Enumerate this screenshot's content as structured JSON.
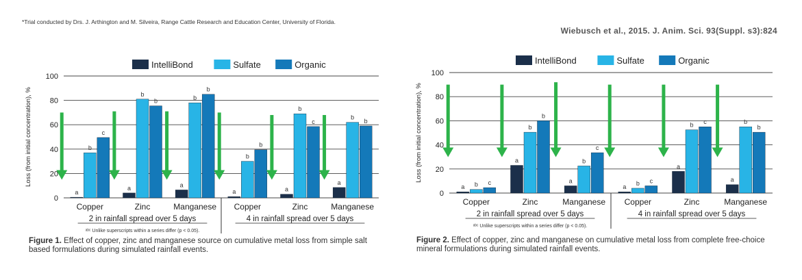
{
  "header": {
    "trial_footnote": "*Trial conducted by Drs. J. Arthington and M. Silveira, Range Cattle Research and Education Center, University of Florida.",
    "citation": "Wiebusch et al., 2015. J. Anim. Sci. 93(Suppl. s3):824"
  },
  "colors": {
    "IntelliBond": "#1b2f4a",
    "Sulfate": "#28b4e6",
    "Organic": "#1479b9",
    "arrow": "#2db34a"
  },
  "chart_data": [
    {
      "type": "bar",
      "ylabel": "Loss (from initial concentration), %",
      "ylim": [
        0,
        100
      ],
      "yticks": [
        0,
        20,
        40,
        60,
        80,
        100
      ],
      "grid": true,
      "legend_position": "top",
      "groups": [
        "2 in rainfall spread over 5 days",
        "4 in rainfall spread over 5 days"
      ],
      "categories": [
        "Copper",
        "Zinc",
        "Manganese",
        "Copper",
        "Zinc",
        "Manganese"
      ],
      "series": [
        {
          "name": "IntelliBond",
          "values": [
            0.5,
            4,
            6.5,
            1,
            3,
            8.5
          ],
          "labels": [
            "a",
            "a",
            "a",
            "a",
            "a",
            "a"
          ]
        },
        {
          "name": "Sulfate",
          "values": [
            37,
            81,
            78,
            30,
            69,
            62
          ],
          "labels": [
            "b",
            "b",
            "b",
            "b",
            "b",
            "b"
          ]
        },
        {
          "name": "Organic",
          "values": [
            49.5,
            75.5,
            85,
            39.5,
            58.5,
            59
          ],
          "labels": [
            "c",
            "b",
            "b",
            "b",
            "c",
            "b"
          ]
        }
      ],
      "arrows": [
        {
          "category_index": 0,
          "from": 70,
          "to": 16
        },
        {
          "category_index": 1,
          "from": 71,
          "to": 16
        },
        {
          "category_index": 2,
          "from": 71,
          "to": 16
        },
        {
          "category_index": 3,
          "from": 70,
          "to": 16
        },
        {
          "category_index": 4,
          "from": 68,
          "to": 16
        },
        {
          "category_index": 5,
          "from": 68,
          "to": 16
        }
      ],
      "superscript_note": "ᵃᵇᶜ Unlike superscripts within a series differ (p < 0.05).",
      "caption_label": "Figure 1.",
      "caption_text": "Effect of copper, zinc and manganese source on cumulative metal loss from simple salt based formulations during simulated rainfall events."
    },
    {
      "type": "bar",
      "ylabel": "Loss (from initial concentration), %",
      "ylim": [
        0,
        100
      ],
      "yticks": [
        0,
        20,
        40,
        60,
        80,
        100
      ],
      "grid": true,
      "legend_position": "top",
      "groups": [
        "2 in rainfall spread over 5 days",
        "4 in rainfall spread over 5 days"
      ],
      "categories": [
        "Copper",
        "Zinc",
        "Manganese",
        "Copper",
        "Zinc",
        "Manganese"
      ],
      "series": [
        {
          "name": "IntelliBond",
          "values": [
            1,
            23,
            6,
            1,
            18,
            7
          ],
          "labels": [
            "a",
            "a",
            "a",
            "a",
            "a",
            "a"
          ]
        },
        {
          "name": "Sulfate",
          "values": [
            3,
            50.5,
            22.5,
            4,
            52.5,
            55
          ],
          "labels": [
            "b",
            "b",
            "b",
            "b",
            "b",
            "b"
          ]
        },
        {
          "name": "Organic",
          "values": [
            4.5,
            60,
            33.5,
            6,
            55,
            50.5
          ],
          "labels": [
            "c",
            "b",
            "c",
            "c",
            "c",
            "b"
          ]
        }
      ],
      "arrows": [
        {
          "category_index": 0,
          "from": 90,
          "to": 31
        },
        {
          "category_index": 1,
          "from": 90,
          "to": 31
        },
        {
          "category_index": 2,
          "from": 92,
          "to": 31
        },
        {
          "category_index": 3,
          "from": 90,
          "to": 31
        },
        {
          "category_index": 4,
          "from": 90,
          "to": 31
        },
        {
          "category_index": 5,
          "from": 90,
          "to": 31
        }
      ],
      "superscript_note": "ᵃᵇᶜ Unlike superscripts within a series differ (p < 0.05).",
      "caption_label": "Figure 2.",
      "caption_text": "Effect of copper, zinc and manganese on cumulative metal loss from complete free-choice mineral formulations during simulated rainfall events."
    }
  ]
}
